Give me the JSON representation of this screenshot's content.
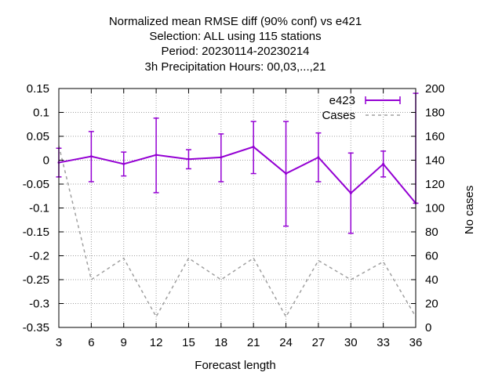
{
  "chart_data": {
    "type": "line",
    "title_lines": [
      "Normalized mean RMSE diff (90% conf) vs e421",
      "Selection: ALL using   115 stations",
      "Period: 20230114-20230214",
      "3h Precipitation   Hours:  00,03,...,21"
    ],
    "xlabel": "Forecast length",
    "ylabel": "",
    "y2label": "No cases",
    "x": [
      3,
      6,
      9,
      12,
      15,
      18,
      21,
      24,
      27,
      30,
      33,
      36
    ],
    "xlim": [
      3,
      36
    ],
    "ylim": [
      -0.35,
      0.15
    ],
    "y2lim": [
      0,
      200
    ],
    "x_ticks": [
      "3",
      "6",
      "9",
      "12",
      "15",
      "18",
      "21",
      "24",
      "27",
      "30",
      "33",
      "36"
    ],
    "y_ticks": [
      "0.15",
      "0.1",
      "0.05",
      "0",
      "-0.05",
      "-0.1",
      "-0.15",
      "-0.2",
      "-0.25",
      "-0.3",
      "-0.35"
    ],
    "y2_ticks": [
      "200",
      "180",
      "160",
      "140",
      "120",
      "100",
      "80",
      "60",
      "40",
      "20",
      "0"
    ],
    "grid": true,
    "legend_position": "top-right",
    "series": [
      {
        "name": "e423",
        "color": "#9400d3",
        "style": "line-errorbars",
        "axis": "left",
        "values": [
          -0.005,
          0.008,
          -0.008,
          0.011,
          0.002,
          0.006,
          0.028,
          -0.028,
          0.006,
          -0.069,
          -0.008,
          -0.09
        ],
        "err_low": [
          -0.035,
          -0.045,
          -0.033,
          -0.068,
          -0.018,
          -0.045,
          -0.028,
          -0.138,
          -0.045,
          -0.153,
          -0.035,
          -0.09
        ],
        "err_high": [
          0.025,
          0.06,
          0.017,
          0.088,
          0.022,
          0.055,
          0.081,
          0.081,
          0.057,
          0.015,
          0.019,
          0.14
        ]
      },
      {
        "name": "Cases",
        "color": "#a0a0a0",
        "style": "dashed",
        "axis": "right",
        "values": [
          152,
          40,
          58,
          9,
          58,
          40,
          58,
          9,
          56,
          40,
          55,
          9
        ]
      }
    ]
  }
}
